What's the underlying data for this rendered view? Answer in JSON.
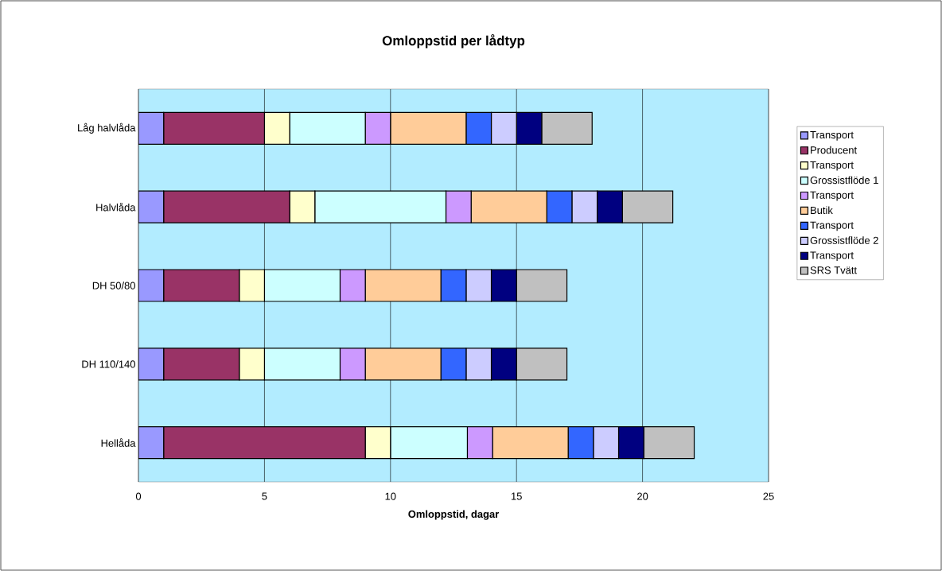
{
  "chart_data": {
    "type": "bar",
    "orientation": "horizontal",
    "stacked": true,
    "title": "Omloppstid per lådtyp",
    "xlabel": "Omloppstid, dagar",
    "categories": [
      "Låg halvlåda",
      "Halvlåda",
      "DH 50/80",
      "DH 110/140",
      "Hellåda"
    ],
    "series": [
      {
        "name": "Transport",
        "color": "#9999ff",
        "values": [
          1,
          1,
          1,
          1,
          1
        ]
      },
      {
        "name": "Producent",
        "color": "#993366",
        "values": [
          4,
          5,
          3,
          3,
          8
        ]
      },
      {
        "name": "Transport",
        "color": "#ffffcc",
        "values": [
          1,
          1,
          1,
          1,
          1
        ]
      },
      {
        "name": "Grossistflöde 1",
        "color": "#ccffff",
        "values": [
          3,
          5.2,
          3,
          3,
          3.05
        ]
      },
      {
        "name": "Transport",
        "color": "#cc99ff",
        "values": [
          1,
          1,
          1,
          1,
          1
        ]
      },
      {
        "name": "Butik",
        "color": "#ffcc99",
        "values": [
          3,
          3,
          3,
          3,
          3
        ]
      },
      {
        "name": "Transport",
        "color": "#3366ff",
        "values": [
          1,
          1,
          1,
          1,
          1
        ]
      },
      {
        "name": "Grossistflöde 2",
        "color": "#ccccff",
        "values": [
          1,
          1,
          1,
          1,
          1
        ]
      },
      {
        "name": "Transport",
        "color": "#000080",
        "values": [
          1,
          1,
          1,
          1,
          1
        ]
      },
      {
        "name": "SRS Tvätt",
        "color": "#c0c0c0",
        "values": [
          2,
          2,
          2,
          2,
          2
        ]
      }
    ],
    "xlim": [
      0,
      25
    ],
    "xticks": [
      0,
      5,
      10,
      15,
      20,
      25
    ],
    "grid": "x",
    "legend": "right"
  }
}
